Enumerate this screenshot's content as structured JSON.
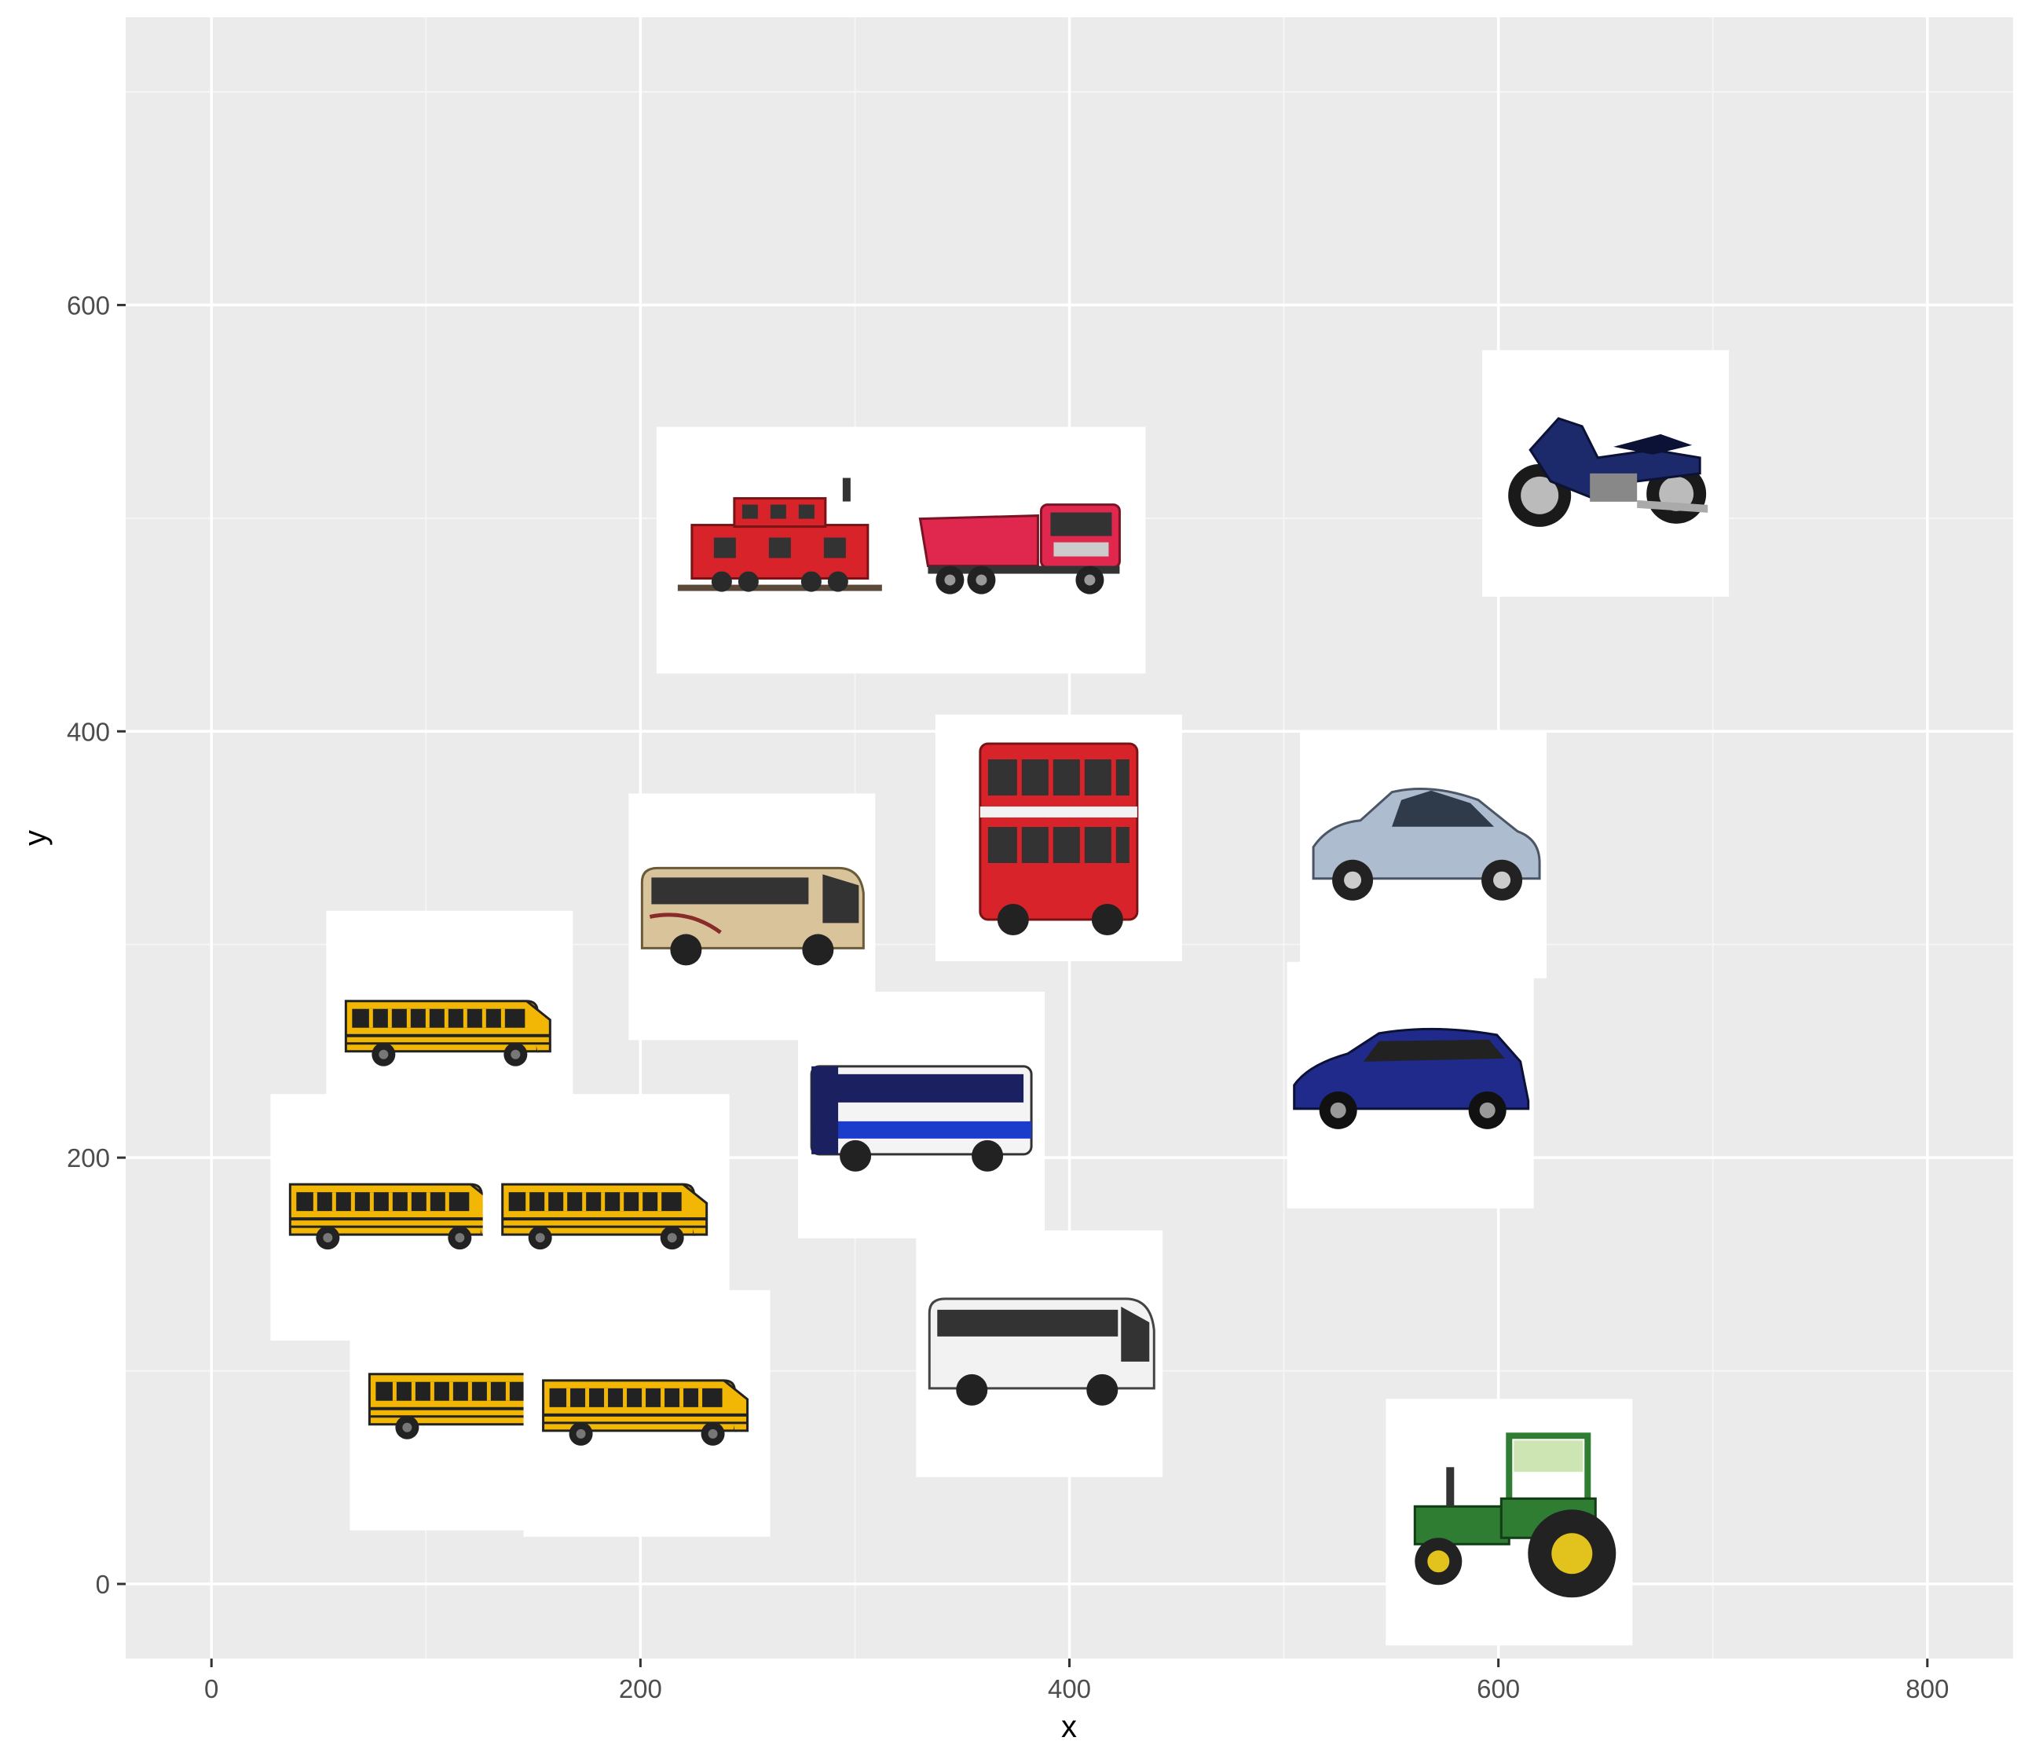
{
  "chart_data": {
    "type": "scatter",
    "xlabel": "x",
    "ylabel": "y",
    "xlim": [
      -40,
      840
    ],
    "ylim": [
      -35,
      735
    ],
    "x_ticks": [
      0,
      200,
      400,
      600,
      800
    ],
    "y_ticks": [
      0,
      200,
      400,
      600
    ],
    "x_tick_labels": [
      "0",
      "200",
      "400",
      "600",
      "800"
    ],
    "y_tick_labels": [
      "0",
      "200",
      "400",
      "600"
    ],
    "grid": true,
    "legend": "none",
    "points": [
      {
        "icon": "caboose-icon",
        "x": 265,
        "y": 485
      },
      {
        "icon": "dump-truck-icon",
        "x": 378,
        "y": 485
      },
      {
        "icon": "motorcycle-icon",
        "x": 650,
        "y": 521
      },
      {
        "icon": "double-decker-bus-icon",
        "x": 395,
        "y": 350
      },
      {
        "icon": "hatchback-car-icon",
        "x": 565,
        "y": 342
      },
      {
        "icon": "tour-bus-icon",
        "x": 252,
        "y": 313
      },
      {
        "icon": "school-bus-icon",
        "x": 111,
        "y": 258
      },
      {
        "icon": "city-bus-icon",
        "x": 331,
        "y": 220
      },
      {
        "icon": "minivan-icon",
        "x": 559,
        "y": 234
      },
      {
        "icon": "school-bus-icon",
        "x": 85,
        "y": 172
      },
      {
        "icon": "school-bus-icon",
        "x": 184,
        "y": 172
      },
      {
        "icon": "coach-bus-icon",
        "x": 386,
        "y": 108
      },
      {
        "icon": "school-bus-icon",
        "x": 122,
        "y": 83
      },
      {
        "icon": "school-bus-icon",
        "x": 203,
        "y": 80
      },
      {
        "icon": "tractor-icon",
        "x": 605,
        "y": 29
      }
    ]
  },
  "colors": {
    "panel": "#ebebeb",
    "grid_major": "#ffffff",
    "grid_minor": "#f5f5f5",
    "tick_text": "#4d4d4d",
    "school_bus": "#f2b705",
    "red_vehicle": "#d8232a",
    "navy": "#1c2a6b"
  }
}
